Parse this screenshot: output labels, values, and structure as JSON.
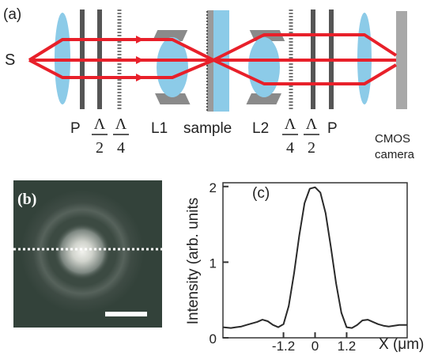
{
  "panel_a": {
    "label": "(a)",
    "source_label": "S",
    "labels": {
      "p_left": "P",
      "lambda_half_left_num": "Λ",
      "lambda_half_left_den": "2",
      "lambda_quarter_left_num": "Λ",
      "lambda_quarter_left_den": "4",
      "l1": "L1",
      "sample": "sample",
      "l2": "L2",
      "lambda_quarter_right_num": "Λ",
      "lambda_quarter_right_den": "4",
      "lambda_half_right_num": "Λ",
      "lambda_half_right_den": "2",
      "p_right": "P",
      "camera_line1": "CMOS",
      "camera_line2": "camera"
    },
    "colors": {
      "beam": "#e8202a",
      "lens": "#8ccbe8",
      "plate": "#555555",
      "camera": "#a8a8a8",
      "mount": "#8a8a8a"
    }
  },
  "panel_b": {
    "label": "(b)"
  },
  "chart_data": {
    "type": "line",
    "panel_label": "(c)",
    "xlabel": "X (μm)",
    "ylabel": "Intensity (arb. units",
    "xlim": [
      -3.5,
      3.5
    ],
    "ylim": [
      0,
      2.05
    ],
    "x_ticks": [
      -1.2,
      0,
      1.2
    ],
    "x_tick_labels": [
      "-1.2",
      "0",
      "1.2"
    ],
    "y_ticks": [
      0,
      1,
      2
    ],
    "y_tick_labels": [
      "0",
      "1",
      "2"
    ],
    "x": [
      -3.5,
      -3.2,
      -3.0,
      -2.8,
      -2.6,
      -2.4,
      -2.2,
      -2.0,
      -1.8,
      -1.6,
      -1.4,
      -1.2,
      -1.0,
      -0.8,
      -0.6,
      -0.4,
      -0.2,
      0.0,
      0.2,
      0.4,
      0.6,
      0.8,
      1.0,
      1.2,
      1.4,
      1.6,
      1.8,
      2.0,
      2.2,
      2.4,
      2.6,
      2.8,
      3.0,
      3.2,
      3.5
    ],
    "y": [
      0.14,
      0.13,
      0.14,
      0.15,
      0.17,
      0.19,
      0.21,
      0.24,
      0.22,
      0.17,
      0.14,
      0.18,
      0.42,
      0.85,
      1.35,
      1.78,
      1.97,
      1.99,
      1.92,
      1.65,
      1.2,
      0.72,
      0.33,
      0.14,
      0.13,
      0.17,
      0.23,
      0.24,
      0.21,
      0.18,
      0.16,
      0.15,
      0.16,
      0.17,
      0.17
    ],
    "line_color": "#2a2a2a"
  }
}
